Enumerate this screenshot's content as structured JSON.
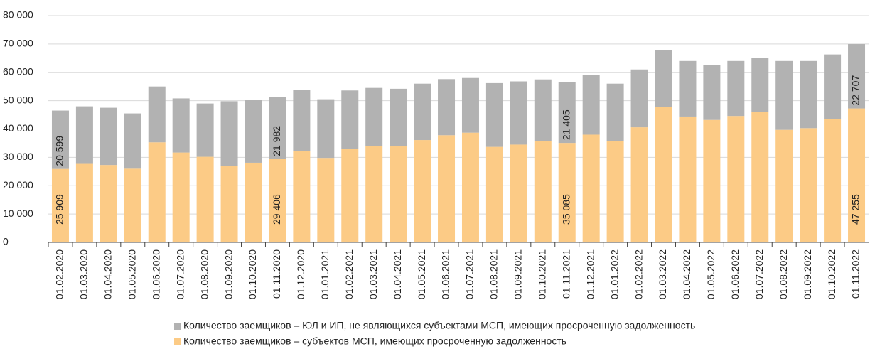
{
  "chart_data": {
    "type": "stacked-bar",
    "categories": [
      "01.02.2020",
      "01.03.2020",
      "01.04.2020",
      "01.05.2020",
      "01.06.2020",
      "01.07.2020",
      "01.08.2020",
      "01.09.2020",
      "01.10.2020",
      "01.11.2020",
      "01.12.2020",
      "01.01.2021",
      "01.02.2021",
      "01.03.2021",
      "01.04.2021",
      "01.05.2021",
      "01.06.2021",
      "01.07.2021",
      "01.08.2021",
      "01.09.2021",
      "01.10.2021",
      "01.11.2021",
      "01.12.2021",
      "01.01.2022",
      "01.02.2022",
      "01.03.2022",
      "01.04.2022",
      "01.05.2022",
      "01.06.2022",
      "01.07.2022",
      "01.08.2022",
      "01.09.2022",
      "01.10.2022",
      "01.11.2022"
    ],
    "series": [
      {
        "name": "Количество заемщиков – субъектов МСП, имеющих просроченную задолженность",
        "color": "#fccb86",
        "values": [
          25909,
          27700,
          27300,
          26000,
          35300,
          31700,
          30200,
          27000,
          28100,
          29406,
          32300,
          29800,
          33100,
          34000,
          34100,
          36100,
          37800,
          38700,
          33700,
          34500,
          35700,
          35085,
          38000,
          35800,
          40600,
          47700,
          44400,
          43200,
          44600,
          46000,
          39700,
          40300,
          43500,
          47255
        ],
        "value_labels": [
          "25 909",
          null,
          null,
          null,
          null,
          null,
          null,
          null,
          null,
          "29 406",
          null,
          null,
          null,
          null,
          null,
          null,
          null,
          null,
          null,
          null,
          null,
          "35 085",
          null,
          null,
          null,
          null,
          null,
          null,
          null,
          null,
          null,
          null,
          null,
          "47 255"
        ]
      },
      {
        "name": "Количество заемщиков – ЮЛ и ИП, не являющихся субъектами МСП, имеющих просроченную задолженность",
        "color": "#b2b2b2",
        "values": [
          20599,
          20300,
          20200,
          19500,
          19700,
          19100,
          18800,
          22800,
          22100,
          21982,
          21500,
          20700,
          20500,
          20500,
          20100,
          19900,
          19800,
          19300,
          22500,
          22300,
          21800,
          21405,
          21000,
          20200,
          20400,
          20100,
          19600,
          19400,
          19400,
          19000,
          24300,
          23700,
          22800,
          22707
        ],
        "value_labels": [
          "20 599",
          null,
          null,
          null,
          null,
          null,
          null,
          null,
          null,
          "21 982",
          null,
          null,
          null,
          null,
          null,
          null,
          null,
          null,
          null,
          null,
          null,
          "21 405",
          null,
          null,
          null,
          null,
          null,
          null,
          null,
          null,
          null,
          null,
          null,
          "22 707"
        ]
      }
    ],
    "ylim": [
      0,
      80000
    ],
    "yticks": [
      0,
      {
        "value": 10000,
        "label": "10 000"
      },
      {
        "value": 20000,
        "label": "20 000"
      },
      {
        "value": 30000,
        "label": "30 000"
      },
      {
        "value": 40000,
        "label": "40 000"
      },
      {
        "value": 50000,
        "label": "50 000"
      },
      {
        "value": 60000,
        "label": "60 000"
      },
      {
        "value": 70000,
        "label": "70 000"
      },
      {
        "value": 80000,
        "label": "80 000"
      }
    ],
    "grid": true
  }
}
